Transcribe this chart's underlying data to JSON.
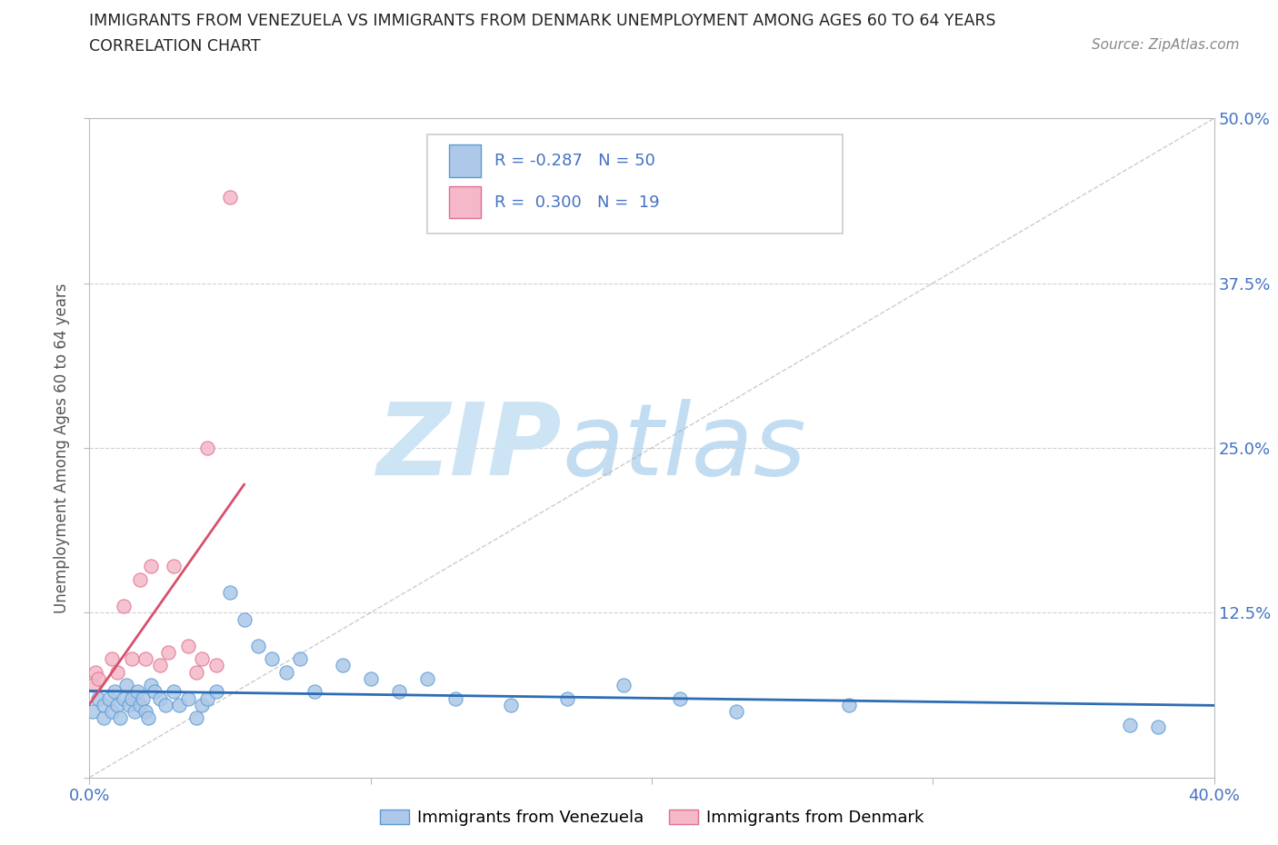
{
  "title_line1": "IMMIGRANTS FROM VENEZUELA VS IMMIGRANTS FROM DENMARK UNEMPLOYMENT AMONG AGES 60 TO 64 YEARS",
  "title_line2": "CORRELATION CHART",
  "source_text": "Source: ZipAtlas.com",
  "ylabel": "Unemployment Among Ages 60 to 64 years",
  "x_min": 0.0,
  "x_max": 0.4,
  "y_min": 0.0,
  "y_max": 0.5,
  "x_ticks": [
    0.0,
    0.1,
    0.2,
    0.3,
    0.4
  ],
  "x_tick_labels": [
    "0.0%",
    "",
    "",
    "",
    "40.0%"
  ],
  "y_ticks": [
    0.0,
    0.125,
    0.25,
    0.375,
    0.5
  ],
  "y_tick_labels": [
    "",
    "12.5%",
    "25.0%",
    "37.5%",
    "50.0%"
  ],
  "venezuela_R": -0.287,
  "venezuela_N": 50,
  "denmark_R": 0.3,
  "denmark_N": 19,
  "venezuela_color": "#adc8e8",
  "venezuela_edge": "#5b9bd5",
  "denmark_color": "#f4b8c8",
  "denmark_edge": "#e07090",
  "trend_venezuela_color": "#2e6db4",
  "trend_denmark_color": "#d94f6e",
  "watermark_zip": "ZIP",
  "watermark_atlas": "atlas",
  "watermark_color": "#cce4f4",
  "legend_text_color": "#4472c4",
  "legend_R_color": "#4472c4",
  "venezuela_x": [
    0.001,
    0.003,
    0.005,
    0.005,
    0.007,
    0.008,
    0.009,
    0.01,
    0.011,
    0.012,
    0.013,
    0.014,
    0.015,
    0.016,
    0.017,
    0.018,
    0.019,
    0.02,
    0.021,
    0.022,
    0.023,
    0.025,
    0.027,
    0.03,
    0.032,
    0.035,
    0.038,
    0.04,
    0.042,
    0.045,
    0.05,
    0.055,
    0.06,
    0.065,
    0.07,
    0.075,
    0.08,
    0.09,
    0.1,
    0.11,
    0.12,
    0.13,
    0.15,
    0.17,
    0.19,
    0.21,
    0.23,
    0.27,
    0.37,
    0.38
  ],
  "venezuela_y": [
    0.05,
    0.06,
    0.045,
    0.055,
    0.06,
    0.05,
    0.065,
    0.055,
    0.045,
    0.06,
    0.07,
    0.055,
    0.06,
    0.05,
    0.065,
    0.055,
    0.06,
    0.05,
    0.045,
    0.07,
    0.065,
    0.06,
    0.055,
    0.065,
    0.055,
    0.06,
    0.045,
    0.055,
    0.06,
    0.065,
    0.14,
    0.12,
    0.1,
    0.09,
    0.08,
    0.09,
    0.065,
    0.085,
    0.075,
    0.065,
    0.075,
    0.06,
    0.055,
    0.06,
    0.07,
    0.06,
    0.05,
    0.055,
    0.04,
    0.038
  ],
  "denmark_x": [
    0.001,
    0.002,
    0.003,
    0.008,
    0.01,
    0.012,
    0.015,
    0.018,
    0.02,
    0.022,
    0.025,
    0.028,
    0.03,
    0.035,
    0.038,
    0.04,
    0.042,
    0.045,
    0.05
  ],
  "denmark_y": [
    0.07,
    0.08,
    0.075,
    0.09,
    0.08,
    0.13,
    0.09,
    0.15,
    0.09,
    0.16,
    0.085,
    0.095,
    0.16,
    0.1,
    0.08,
    0.09,
    0.25,
    0.085,
    0.44
  ]
}
